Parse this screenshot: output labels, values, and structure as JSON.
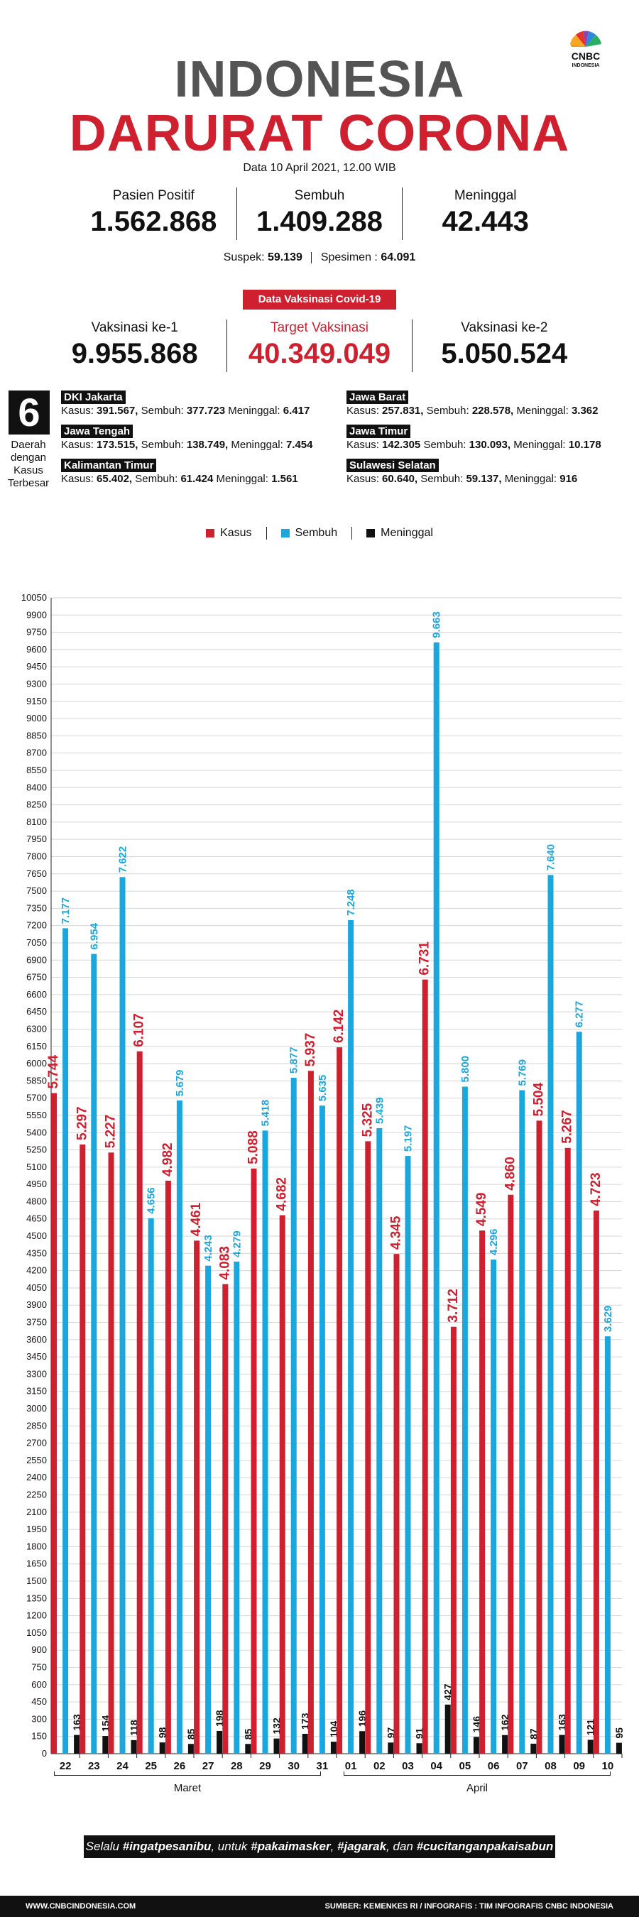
{
  "logo": {
    "brand": "CNBC",
    "sub": "INDONESIA"
  },
  "header": {
    "title_line1": "INDONESIA",
    "title_line2": "DARURAT CORONA",
    "date": "Data 10 April 2021, 12.00 WIB"
  },
  "stats": {
    "positive_label": "Pasien Positif",
    "positive_value": "1.562.868",
    "recovered_label": "Sembuh",
    "recovered_value": "1.409.288",
    "deaths_label": "Meninggal",
    "deaths_value": "42.443",
    "suspect_label": "Suspek:",
    "suspect_value": "59.139",
    "specimen_label": "Spesimen :",
    "specimen_value": "64.091"
  },
  "vaccination": {
    "badge": "Data Vaksinasi Covid-19",
    "dose1_label": "Vaksinasi ke-1",
    "dose1_value": "9.955.868",
    "target_label": "Target Vaksinasi",
    "target_value": "40.349.049",
    "dose2_label": "Vaksinasi ke-2",
    "dose2_value": "5.050.524"
  },
  "regions": {
    "count": "6",
    "caption": "Daerah dengan Kasus Terbesar",
    "cases_label": "Kasus:",
    "recovered_label": "Sembuh:",
    "deaths_label": "Meninggal:",
    "items": [
      {
        "name": "DKI Jakarta",
        "cases": "391.567,",
        "recovered": "377.723",
        "deaths": "6.417"
      },
      {
        "name": "Jawa Barat",
        "cases": "257.831,",
        "recovered": "228.578,",
        "deaths": "3.362"
      },
      {
        "name": "Jawa Tengah",
        "cases": "173.515,",
        "recovered": "138.749,",
        "deaths": "7.454"
      },
      {
        "name": "Jawa Timur",
        "cases": "142.305",
        "recovered": "130.093,",
        "deaths": "10.178"
      },
      {
        "name": "Kalimantan Timur",
        "cases": "65.402,",
        "recovered": "61.424",
        "deaths": "1.561"
      },
      {
        "name": "Sulawesi Selatan",
        "cases": "60.640,",
        "recovered": "59.137,",
        "deaths": "916"
      }
    ]
  },
  "chart_data": {
    "type": "bar",
    "categories": [
      "22",
      "23",
      "24",
      "25",
      "26",
      "27",
      "28",
      "29",
      "30",
      "31",
      "01",
      "02",
      "03",
      "04",
      "05",
      "06",
      "07",
      "08",
      "09",
      "10"
    ],
    "groups": [
      {
        "label": "Maret",
        "from": 0,
        "to": 9
      },
      {
        "label": "April",
        "from": 10,
        "to": 19
      }
    ],
    "series": [
      {
        "name": "Kasus",
        "color": "#cf2030",
        "values": [
          5744,
          5297,
          5227,
          6107,
          4982,
          4461,
          4083,
          5088,
          4682,
          5937,
          6142,
          5325,
          4345,
          6731,
          3712,
          4549,
          4860,
          5504,
          5267,
          4723
        ],
        "labels": [
          "5.744",
          "5.297",
          "5.227",
          "6.107",
          "4.982",
          "4.461",
          "4.083",
          "5.088",
          "4.682",
          "5.937",
          "6.142",
          "5.325",
          "4.345",
          "6.731",
          "3.712",
          "4.549",
          "4.860",
          "5.504",
          "5.267",
          "4.723"
        ]
      },
      {
        "name": "Sembuh",
        "color": "#1aa7de",
        "values": [
          7177,
          6954,
          7622,
          4656,
          5679,
          4243,
          4279,
          5418,
          5877,
          5635,
          7248,
          5439,
          5197,
          9663,
          5800,
          4296,
          5769,
          7640,
          6277,
          3629
        ],
        "labels": [
          "7.177",
          "6.954",
          "7.622",
          "4.656",
          "5.679",
          "4.243",
          "4.279",
          "5.418",
          "5.877",
          "5.635",
          "7.248",
          "5.439",
          "5.197",
          "9.663",
          "5.800",
          "4.296",
          "5.769",
          "7.640",
          "6.277",
          "3.629"
        ]
      },
      {
        "name": "Meninggal",
        "color": "#111111",
        "values": [
          163,
          154,
          118,
          98,
          85,
          198,
          85,
          132,
          173,
          104,
          196,
          97,
          91,
          427,
          146,
          162,
          87,
          163,
          121,
          95
        ],
        "labels": [
          "163",
          "154",
          "118",
          "98",
          "85",
          "198",
          "85",
          "132",
          "173",
          "104",
          "196",
          "97",
          "91",
          "427",
          "146",
          "162",
          "87",
          "163",
          "121",
          "95"
        ]
      }
    ],
    "y_ticks": [
      0,
      150,
      300,
      450,
      600,
      750,
      900,
      1050,
      1200,
      1350,
      1500,
      1650,
      1800,
      1950,
      2100,
      2250,
      2400,
      2550,
      2700,
      2850,
      3000,
      3150,
      3300,
      3450,
      3600,
      3750,
      3900,
      4050,
      4200,
      4350,
      4500,
      4650,
      4800,
      4950,
      5100,
      5250,
      5400,
      5550,
      5700,
      5850,
      6000,
      6150,
      6300,
      6450,
      6600,
      6750,
      6900,
      7050,
      7200,
      7350,
      7500,
      7650,
      7800,
      7950,
      8100,
      8250,
      8400,
      8550,
      8700,
      8850,
      9000,
      9150,
      9300,
      9450,
      9600,
      9750,
      9900,
      10050
    ],
    "ylim": [
      0,
      10050
    ],
    "grid": true,
    "legend": "top-center"
  },
  "slogan": {
    "p1": "Selalu ",
    "b1": "#ingatpesanibu",
    "p2": ", untuk ",
    "b2": "#pakaimasker",
    "p3": ", ",
    "b3": "#jagarak",
    "p4": ", dan ",
    "b4": "#cucitanganpakaisabun"
  },
  "footer": {
    "left": "WWW.CNBCINDONESIA.COM",
    "right": "SUMBER: KEMENKES RI / INFOGRAFIS : TIM INFOGRAFIS CNBC INDONESIA"
  }
}
